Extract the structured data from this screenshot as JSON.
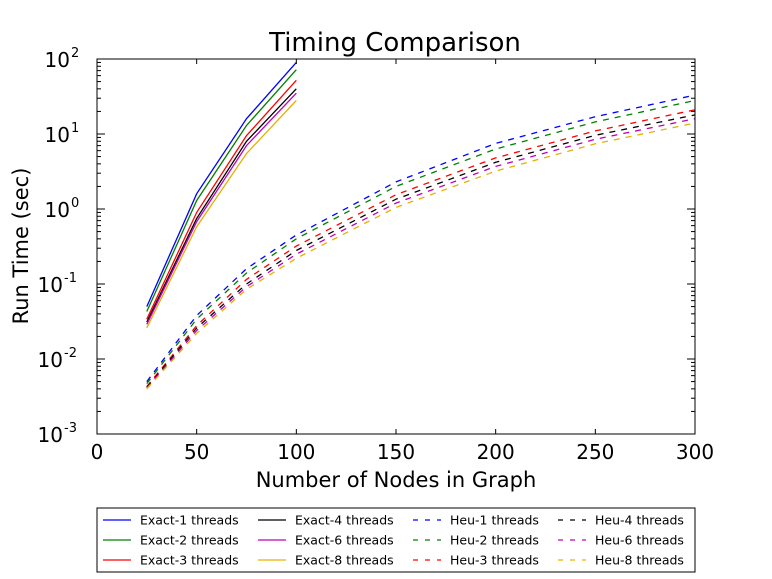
{
  "chart_data": {
    "type": "line",
    "title": "Timing Comparison",
    "xlabel": "Number of Nodes in Graph",
    "ylabel": "Run Time (sec)",
    "xlim": [
      0,
      300
    ],
    "ylim": [
      0.001,
      100
    ],
    "yscale": "log",
    "xticks": [
      "0",
      "50",
      "100",
      "150",
      "200",
      "250",
      "300"
    ],
    "yticks": [
      {
        "base": "10",
        "exp": "-3"
      },
      {
        "base": "10",
        "exp": "-2"
      },
      {
        "base": "10",
        "exp": "-1"
      },
      {
        "base": "10",
        "exp": "0"
      },
      {
        "base": "10",
        "exp": "1"
      },
      {
        "base": "10",
        "exp": "2"
      }
    ],
    "legend_position": "below plot, 4 columns",
    "series": [
      {
        "name": "Exact-1 threads",
        "color": "#0000ff",
        "style": "solid",
        "x": [
          25,
          50,
          75,
          100
        ],
        "y": [
          0.05,
          1.6,
          16,
          90
        ]
      },
      {
        "name": "Exact-2 threads",
        "color": "#008000",
        "style": "solid",
        "x": [
          25,
          50,
          75,
          100
        ],
        "y": [
          0.043,
          1.3,
          13,
          72
        ]
      },
      {
        "name": "Exact-3 threads",
        "color": "#ff0000",
        "style": "solid",
        "x": [
          25,
          50,
          75,
          100
        ],
        "y": [
          0.034,
          0.9,
          9.5,
          52
        ]
      },
      {
        "name": "Exact-4 threads",
        "color": "#000000",
        "style": "solid",
        "x": [
          25,
          50,
          75,
          100
        ],
        "y": [
          0.031,
          0.75,
          8.0,
          40
        ]
      },
      {
        "name": "Exact-6 threads",
        "color": "#bf00bf",
        "style": "solid",
        "x": [
          25,
          50,
          75,
          100
        ],
        "y": [
          0.029,
          0.68,
          7.0,
          35
        ]
      },
      {
        "name": "Exact-8 threads",
        "color": "#e6b000",
        "style": "solid",
        "x": [
          25,
          50,
          75,
          100
        ],
        "y": [
          0.026,
          0.58,
          5.5,
          28
        ]
      },
      {
        "name": "Heu-1 threads",
        "color": "#0000ff",
        "style": "dashed",
        "x": [
          25,
          50,
          75,
          100,
          150,
          200,
          250,
          300
        ],
        "y": [
          0.005,
          0.038,
          0.16,
          0.45,
          2.3,
          7.5,
          17,
          33
        ]
      },
      {
        "name": "Heu-2 threads",
        "color": "#008000",
        "style": "dashed",
        "x": [
          25,
          50,
          75,
          100,
          150,
          200,
          250,
          300
        ],
        "y": [
          0.0047,
          0.034,
          0.14,
          0.4,
          2.0,
          6.3,
          14.5,
          28
        ]
      },
      {
        "name": "Heu-3 threads",
        "color": "#ff0000",
        "style": "dashed",
        "x": [
          25,
          50,
          75,
          100,
          150,
          200,
          250,
          300
        ],
        "y": [
          0.0043,
          0.028,
          0.115,
          0.32,
          1.55,
          4.8,
          11,
          21
        ]
      },
      {
        "name": "Heu-4 threads",
        "color": "#000000",
        "style": "dashed",
        "x": [
          25,
          50,
          75,
          100,
          150,
          200,
          250,
          300
        ],
        "y": [
          0.0042,
          0.026,
          0.1,
          0.28,
          1.35,
          4.2,
          9.6,
          18
        ]
      },
      {
        "name": "Heu-6 threads",
        "color": "#bf00bf",
        "style": "dashed",
        "x": [
          25,
          50,
          75,
          100,
          150,
          200,
          250,
          300
        ],
        "y": [
          0.0041,
          0.024,
          0.092,
          0.25,
          1.2,
          3.7,
          8.5,
          16
        ]
      },
      {
        "name": "Heu-8 threads",
        "color": "#e6b000",
        "style": "dashed",
        "x": [
          25,
          50,
          75,
          100,
          150,
          200,
          250,
          300
        ],
        "y": [
          0.004,
          0.022,
          0.085,
          0.22,
          1.05,
          3.2,
          7.4,
          14
        ]
      }
    ]
  }
}
